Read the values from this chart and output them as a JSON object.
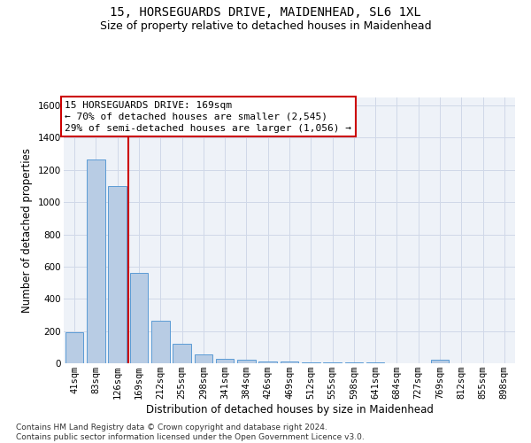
{
  "title1": "15, HORSEGUARDS DRIVE, MAIDENHEAD, SL6 1XL",
  "title2": "Size of property relative to detached houses in Maidenhead",
  "xlabel": "Distribution of detached houses by size in Maidenhead",
  "ylabel": "Number of detached properties",
  "categories": [
    "41sqm",
    "83sqm",
    "126sqm",
    "169sqm",
    "212sqm",
    "255sqm",
    "298sqm",
    "341sqm",
    "384sqm",
    "426sqm",
    "469sqm",
    "512sqm",
    "555sqm",
    "598sqm",
    "641sqm",
    "684sqm",
    "727sqm",
    "769sqm",
    "812sqm",
    "855sqm",
    "898sqm"
  ],
  "values": [
    195,
    1265,
    1100,
    560,
    265,
    120,
    55,
    30,
    20,
    10,
    10,
    5,
    5,
    5,
    5,
    0,
    0,
    20,
    0,
    0,
    0
  ],
  "bar_color": "#b8cce4",
  "bar_edge_color": "#5b9bd5",
  "red_line_index": 3,
  "red_line_color": "#cc0000",
  "annotation_line1": "15 HORSEGUARDS DRIVE: 169sqm",
  "annotation_line2": "← 70% of detached houses are smaller (2,545)",
  "annotation_line3": "29% of semi-detached houses are larger (1,056) →",
  "annotation_box_color": "white",
  "annotation_box_edge": "#cc0000",
  "ylim": [
    0,
    1650
  ],
  "yticks": [
    0,
    200,
    400,
    600,
    800,
    1000,
    1200,
    1400,
    1600
  ],
  "grid_color": "#d0d8e8",
  "bg_color": "#eef2f8",
  "footer": "Contains HM Land Registry data © Crown copyright and database right 2024.\nContains public sector information licensed under the Open Government Licence v3.0.",
  "title1_fontsize": 10,
  "title2_fontsize": 9,
  "xlabel_fontsize": 8.5,
  "ylabel_fontsize": 8.5,
  "tick_fontsize": 7.5,
  "annotation_fontsize": 8,
  "footer_fontsize": 6.5
}
